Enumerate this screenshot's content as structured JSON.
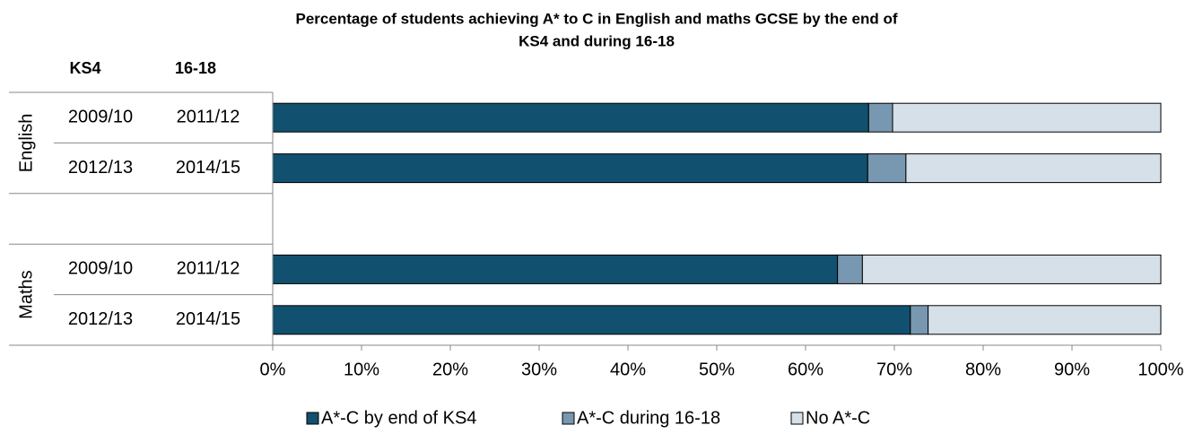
{
  "chart_data": {
    "type": "stacked_bar_horizontal",
    "title": [
      "Percentage of students achieving A* to C in English and maths GCSE by the end of",
      "KS4 and during 16-18"
    ],
    "column_headers": [
      "KS4",
      "16-18"
    ],
    "groups": [
      {
        "name": "English",
        "categories": [
          [
            "2009/10",
            "2011/12"
          ],
          [
            "2012/13",
            "2014/15"
          ]
        ]
      },
      {
        "name": "Maths",
        "categories": [
          [
            "2009/10",
            "2011/12"
          ],
          [
            "2012/13",
            "2014/15"
          ]
        ]
      }
    ],
    "series": [
      {
        "name": "A*-C by end of KS4",
        "color": "#11506e",
        "values": [
          67.1,
          67.0,
          63.6,
          71.8
        ]
      },
      {
        "name": "A*-C during 16-18",
        "color": "#7897b0",
        "values": [
          2.7,
          4.3,
          2.8,
          2.0
        ]
      },
      {
        "name": "No A*-C",
        "color": "#d6e0e9",
        "values": [
          30.2,
          28.7,
          33.6,
          26.2
        ]
      }
    ],
    "xlim": [
      0,
      100
    ],
    "xticks": [
      {
        "value": 0,
        "label": "0%"
      },
      {
        "value": 10,
        "label": "10%"
      },
      {
        "value": 20,
        "label": "20%"
      },
      {
        "value": 30,
        "label": "30%"
      },
      {
        "value": 40,
        "label": "40%"
      },
      {
        "value": 50,
        "label": "50%"
      },
      {
        "value": 60,
        "label": "60%"
      },
      {
        "value": 70,
        "label": "70%"
      },
      {
        "value": 80,
        "label": "80%"
      },
      {
        "value": 90,
        "label": "90%"
      },
      {
        "value": 100,
        "label": "100%"
      }
    ],
    "legend": "bottom"
  }
}
